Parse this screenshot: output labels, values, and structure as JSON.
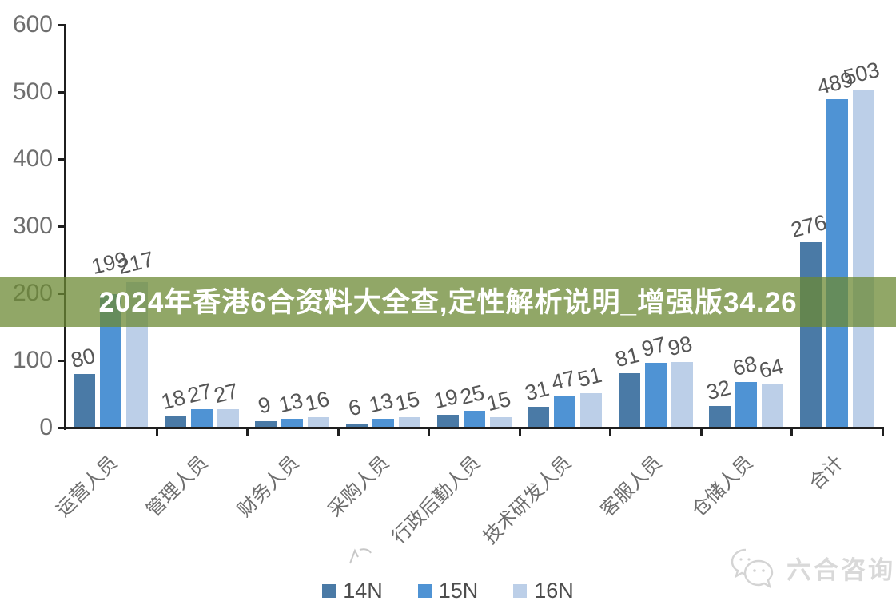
{
  "banner": {
    "text": "2024年香港6合资料大全查,定性解析说明_增强版34.26",
    "bg_color": "rgba(108,138,52,0.75)",
    "text_color": "#ffffff"
  },
  "watermark": {
    "text": "六合咨询",
    "icon": "wechat-chat-bubbles-icon",
    "color": "#d9d9d9"
  },
  "chart_data": {
    "type": "bar",
    "categories": [
      "运营人员",
      "管理人员",
      "财务人员",
      "采购人员",
      "行政后勤人员",
      "技术研发人员",
      "客服人员",
      "仓储人员",
      "合计"
    ],
    "series": [
      {
        "name": "14N",
        "color": "#4A7AA6",
        "values": [
          80,
          18,
          9,
          6,
          19,
          31,
          81,
          32,
          276
        ]
      },
      {
        "name": "15N",
        "color": "#4F93D4",
        "values": [
          199,
          27,
          13,
          13,
          25,
          47,
          97,
          68,
          489
        ]
      },
      {
        "name": "16N",
        "color": "#BCCFE8",
        "values": [
          217,
          27,
          16,
          15,
          15,
          51,
          98,
          64,
          503
        ]
      }
    ],
    "title": "",
    "xlabel": "",
    "ylabel": "",
    "ylim": [
      0,
      600
    ],
    "yticks": [
      0,
      100,
      200,
      300,
      400,
      500,
      600
    ],
    "grid": false,
    "data_labels": true,
    "legend_position": "bottom",
    "axis_color": "#1f1f1f",
    "label_color": "#565656",
    "tick_label_color": "#6e6e6e"
  }
}
